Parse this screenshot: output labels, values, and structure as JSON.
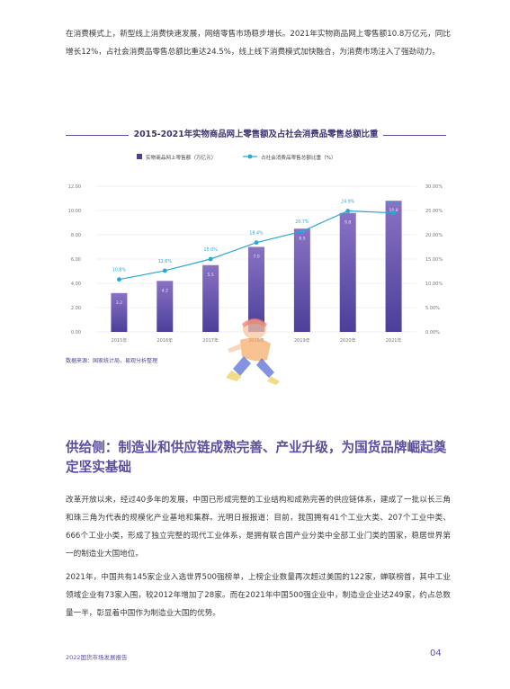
{
  "intro": "在消费模式上，新型线上消费快速发展，网络零售市场稳步增长。2021年实物商品网上零售额10.8万亿元，同比增长12%，占社会消费品零售总额比重达24.5%，线上线下消费模式加快融合，为消费市场注入了强劲动力。",
  "chart_data": {
    "type": "bar",
    "title": "2015-2021年实物商品网上零售额及占社会消费品零售总额比重",
    "categories": [
      "2015年",
      "2016年",
      "2017年",
      "2018年",
      "2019年",
      "2020年",
      "2021年"
    ],
    "series": [
      {
        "name": "实物商品网上零售额（万亿元）",
        "type": "bar",
        "axis": "left",
        "values": [
          3.2,
          4.2,
          5.5,
          7.0,
          8.5,
          9.8,
          10.8
        ],
        "labels": [
          "3.2",
          "4.2",
          "5.5",
          "7.0",
          "8.5",
          "9.8",
          "10.8"
        ]
      },
      {
        "name": "占社会消费品零售总额比重（%）",
        "type": "line",
        "axis": "right",
        "values": [
          10.8,
          12.6,
          15.0,
          18.4,
          20.7,
          24.9,
          24.5
        ],
        "labels": [
          "10.8%",
          "12.6%",
          "15.0%",
          "18.4%",
          "20.7%",
          "24.9%",
          "24.5%"
        ]
      }
    ],
    "ylim_left": [
      0,
      12
    ],
    "yticks_left": [
      "0.00",
      "2.00",
      "4.00",
      "6.00",
      "8.00",
      "10.00",
      "12.00"
    ],
    "ylim_right": [
      0,
      30
    ],
    "yticks_right": [
      "0.00%",
      "5.00%",
      "10.00%",
      "15.00%",
      "20.00%",
      "25.00%",
      "30.00%"
    ],
    "grid": true,
    "legend": "top-center",
    "colors": {
      "bar_top": "#8a72c4",
      "bar_bottom": "#4b3f9a",
      "line": "#2aa7d6",
      "title_rule": "#5a4e9a"
    }
  },
  "source": "数据来源：国家统计局，易观分析整理",
  "section_heading": "供给侧：制造业和供应链成熟完善、产业升级，为国货品牌崛起奠定坚实基础",
  "para2": "改革开放以来，经过40多年的发展，中国已形成完整的工业结构和成熟完善的供应链体系，建成了一批以长三角和珠三角为代表的规模化产业基地和集群。光明日报报道：目前，我国拥有41个工业大类、207个工业中类、666个工业小类，形成了独立完整的现代工业体系，是拥有联合国产业分类中全部工业门类的国家，稳居世界第一的制造业大国地位。",
  "para3": "2021年，中国共有145家企业入选世界500强榜单，上榜企业数量再次超过美国的122家，蝉联榜首，其中工业领域企业有73家入围，较2012年增加了28家。而在2021年中国500强企业中，制造业企业达249家，约占总数量一半，彰显着中国作为制造业大国的优势。",
  "footer_left": "2022国货市场发展报告",
  "page_number": "04"
}
